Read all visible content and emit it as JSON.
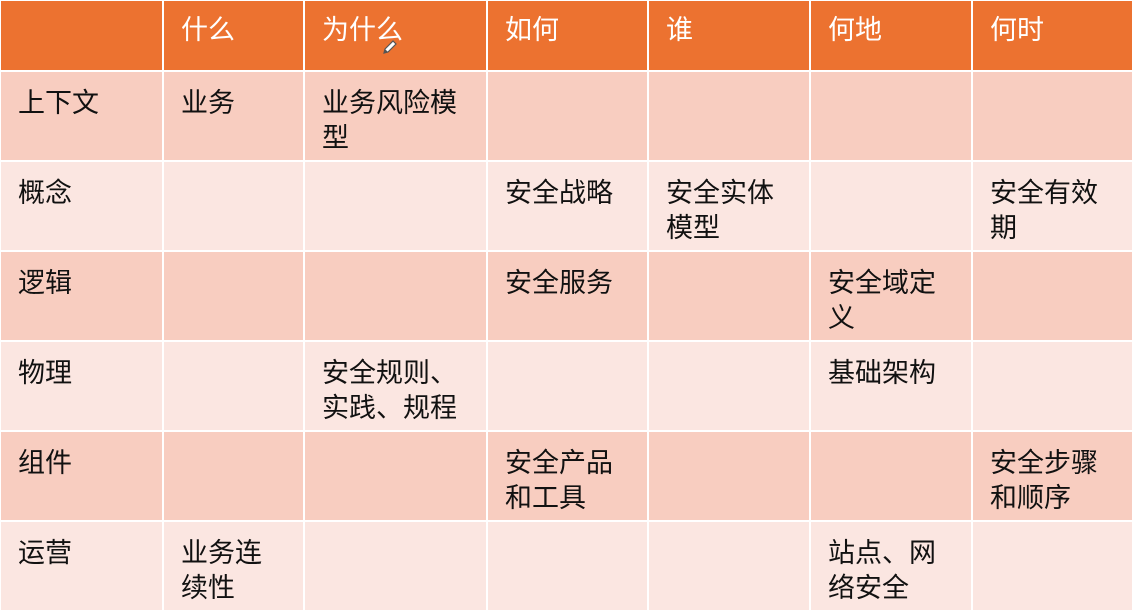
{
  "colors": {
    "header": "#EC7230",
    "row_odd": "#F8CDC0",
    "row_even": "#FBE6E1"
  },
  "headers": [
    "",
    "什么",
    "为什么",
    "如何",
    "谁",
    "何地",
    "何时"
  ],
  "rows": [
    [
      "上下文",
      "业务",
      "业务风险模型",
      "",
      "",
      "",
      ""
    ],
    [
      "概念",
      "",
      "",
      "安全战略",
      "安全实体模型",
      "",
      "安全有效期"
    ],
    [
      "逻辑",
      "",
      "",
      "安全服务",
      "",
      "安全域定义",
      ""
    ],
    [
      "物理",
      "",
      "安全规则、实践、规程",
      "",
      "",
      "基础架构",
      ""
    ],
    [
      "组件",
      "",
      "",
      "安全产品和工具",
      "",
      "",
      "安全步骤和顺序"
    ],
    [
      "运营",
      "业务连续性",
      "",
      "",
      "",
      "站点、网络安全",
      ""
    ]
  ],
  "cursor_icon": "pencil-icon"
}
